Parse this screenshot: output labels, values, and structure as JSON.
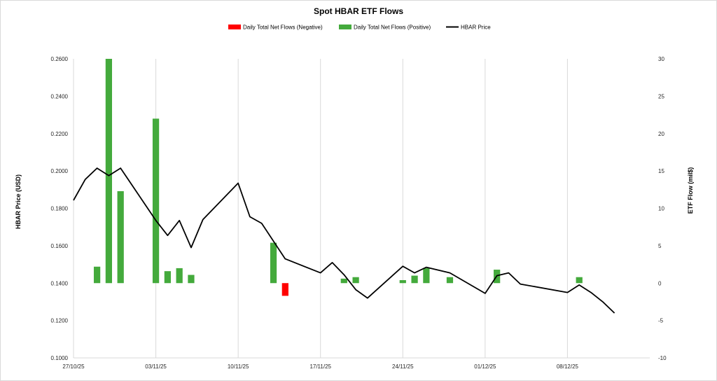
{
  "chart_data": {
    "type": "bar+line",
    "title": "Spot HBAR ETF Flows",
    "legend": [
      {
        "name": "Daily Total Net Flows (Negative)",
        "color": "#ff0000",
        "kind": "bar"
      },
      {
        "name": "Daily Total Net Flows (Positive)",
        "color": "#44aa3c",
        "kind": "bar"
      },
      {
        "name": "HBAR Price",
        "color": "#000000",
        "kind": "line"
      }
    ],
    "legend_position": "top",
    "ylabel_left": "HBAR Price (USD)",
    "ylabel_right": "ETF Flow (mil$)",
    "x_ticks": [
      "27/10/25",
      "03/11/25",
      "10/11/25",
      "17/11/25",
      "24/11/25",
      "01/12/25",
      "08/12/25"
    ],
    "y_left_ticks": [
      "0.1000",
      "0.1200",
      "0.1400",
      "0.1600",
      "0.1800",
      "0.2000",
      "0.2200",
      "0.2400",
      "0.2600"
    ],
    "y_right_ticks": [
      "-10",
      "-5",
      "0",
      "5",
      "10",
      "15",
      "20",
      "25",
      "30"
    ],
    "y_left_lim": [
      0.1,
      0.26
    ],
    "y_right_lim": [
      -10,
      30
    ],
    "x_start": "2025-10-27",
    "x_end": "2025-12-15",
    "grid": "vertical",
    "flows": [
      {
        "date": "2025-10-29",
        "value": 2.2
      },
      {
        "date": "2025-10-30",
        "value": 30.0
      },
      {
        "date": "2025-10-31",
        "value": 12.3
      },
      {
        "date": "2025-11-03",
        "value": 22.0
      },
      {
        "date": "2025-11-04",
        "value": 1.6
      },
      {
        "date": "2025-11-05",
        "value": 2.0
      },
      {
        "date": "2025-11-06",
        "value": 1.1
      },
      {
        "date": "2025-11-13",
        "value": 5.4
      },
      {
        "date": "2025-11-14",
        "value": -1.7
      },
      {
        "date": "2025-11-19",
        "value": 0.6
      },
      {
        "date": "2025-11-20",
        "value": 0.8
      },
      {
        "date": "2025-11-24",
        "value": 0.4
      },
      {
        "date": "2025-11-25",
        "value": 1.0
      },
      {
        "date": "2025-11-26",
        "value": 2.0
      },
      {
        "date": "2025-11-28",
        "value": 0.8
      },
      {
        "date": "2025-12-02",
        "value": 1.8
      },
      {
        "date": "2025-12-09",
        "value": 0.8
      }
    ],
    "price": [
      {
        "date": "2025-10-27",
        "value": 0.1843
      },
      {
        "date": "2025-10-28",
        "value": 0.1955
      },
      {
        "date": "2025-10-29",
        "value": 0.2015
      },
      {
        "date": "2025-10-30",
        "value": 0.1975
      },
      {
        "date": "2025-10-31",
        "value": 0.2015
      },
      {
        "date": "2025-11-03",
        "value": 0.1735
      },
      {
        "date": "2025-11-04",
        "value": 0.1655
      },
      {
        "date": "2025-11-05",
        "value": 0.1735
      },
      {
        "date": "2025-11-06",
        "value": 0.159
      },
      {
        "date": "2025-11-07",
        "value": 0.174
      },
      {
        "date": "2025-11-10",
        "value": 0.1935
      },
      {
        "date": "2025-11-11",
        "value": 0.1755
      },
      {
        "date": "2025-11-12",
        "value": 0.172
      },
      {
        "date": "2025-11-13",
        "value": 0.1625
      },
      {
        "date": "2025-11-14",
        "value": 0.153
      },
      {
        "date": "2025-11-17",
        "value": 0.1455
      },
      {
        "date": "2025-11-18",
        "value": 0.151
      },
      {
        "date": "2025-11-19",
        "value": 0.1445
      },
      {
        "date": "2025-11-20",
        "value": 0.1365
      },
      {
        "date": "2025-11-21",
        "value": 0.132
      },
      {
        "date": "2025-11-24",
        "value": 0.149
      },
      {
        "date": "2025-11-25",
        "value": 0.1455
      },
      {
        "date": "2025-11-26",
        "value": 0.1485
      },
      {
        "date": "2025-11-28",
        "value": 0.1455
      },
      {
        "date": "2025-12-01",
        "value": 0.1345
      },
      {
        "date": "2025-12-02",
        "value": 0.144
      },
      {
        "date": "2025-12-03",
        "value": 0.1455
      },
      {
        "date": "2025-12-04",
        "value": 0.1395
      },
      {
        "date": "2025-12-08",
        "value": 0.135
      },
      {
        "date": "2025-12-09",
        "value": 0.139
      },
      {
        "date": "2025-12-10",
        "value": 0.135
      },
      {
        "date": "2025-12-11",
        "value": 0.13
      },
      {
        "date": "2025-12-12",
        "value": 0.124
      }
    ]
  }
}
